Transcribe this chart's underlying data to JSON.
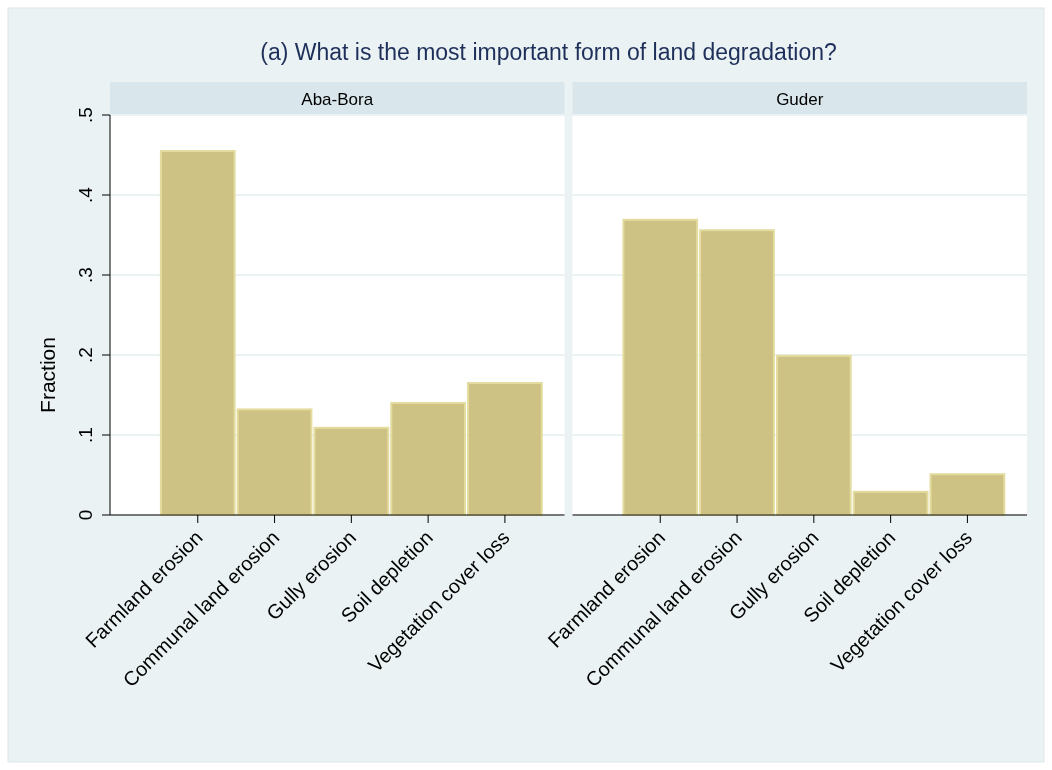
{
  "chart_data": [
    {
      "type": "bar",
      "title": "(a) What is the most important form of land degradation?",
      "subtitle": "Aba-Bora",
      "ylabel": "Fraction",
      "categories": [
        "Farmland erosion",
        "Communal land erosion",
        "Gully erosion",
        "Soil depletion",
        "Vegetation cover loss"
      ],
      "values": [
        0.455,
        0.132,
        0.109,
        0.14,
        0.165
      ],
      "color": "#cdc283",
      "ylim": [
        0,
        0.5
      ],
      "yticks": [
        {
          "value": 0,
          "label": "0"
        },
        {
          "value": 0.1,
          "label": ".1"
        },
        {
          "value": 0.2,
          "label": ".2"
        },
        {
          "value": 0.3,
          "label": ".3"
        },
        {
          "value": 0.4,
          "label": ".4"
        },
        {
          "value": 0.5,
          "label": ".5"
        }
      ],
      "grid": "y"
    },
    {
      "type": "bar",
      "subtitle": "Guder",
      "categories": [
        "Farmland erosion",
        "Communal land erosion",
        "Gully erosion",
        "Soil depletion",
        "Vegetation cover loss"
      ],
      "values": [
        0.369,
        0.356,
        0.199,
        0.029,
        0.051
      ],
      "color": "#cdc283",
      "ylim": [
        0,
        0.5
      ],
      "yticks": [
        {
          "value": 0,
          "label": null
        },
        {
          "value": 0.1,
          "label": null
        },
        {
          "value": 0.2,
          "label": null
        },
        {
          "value": 0.3,
          "label": null
        },
        {
          "value": 0.4,
          "label": null
        },
        {
          "value": 0.5,
          "label": null
        }
      ],
      "grid": "y",
      "tick_labels": "x"
    }
  ]
}
